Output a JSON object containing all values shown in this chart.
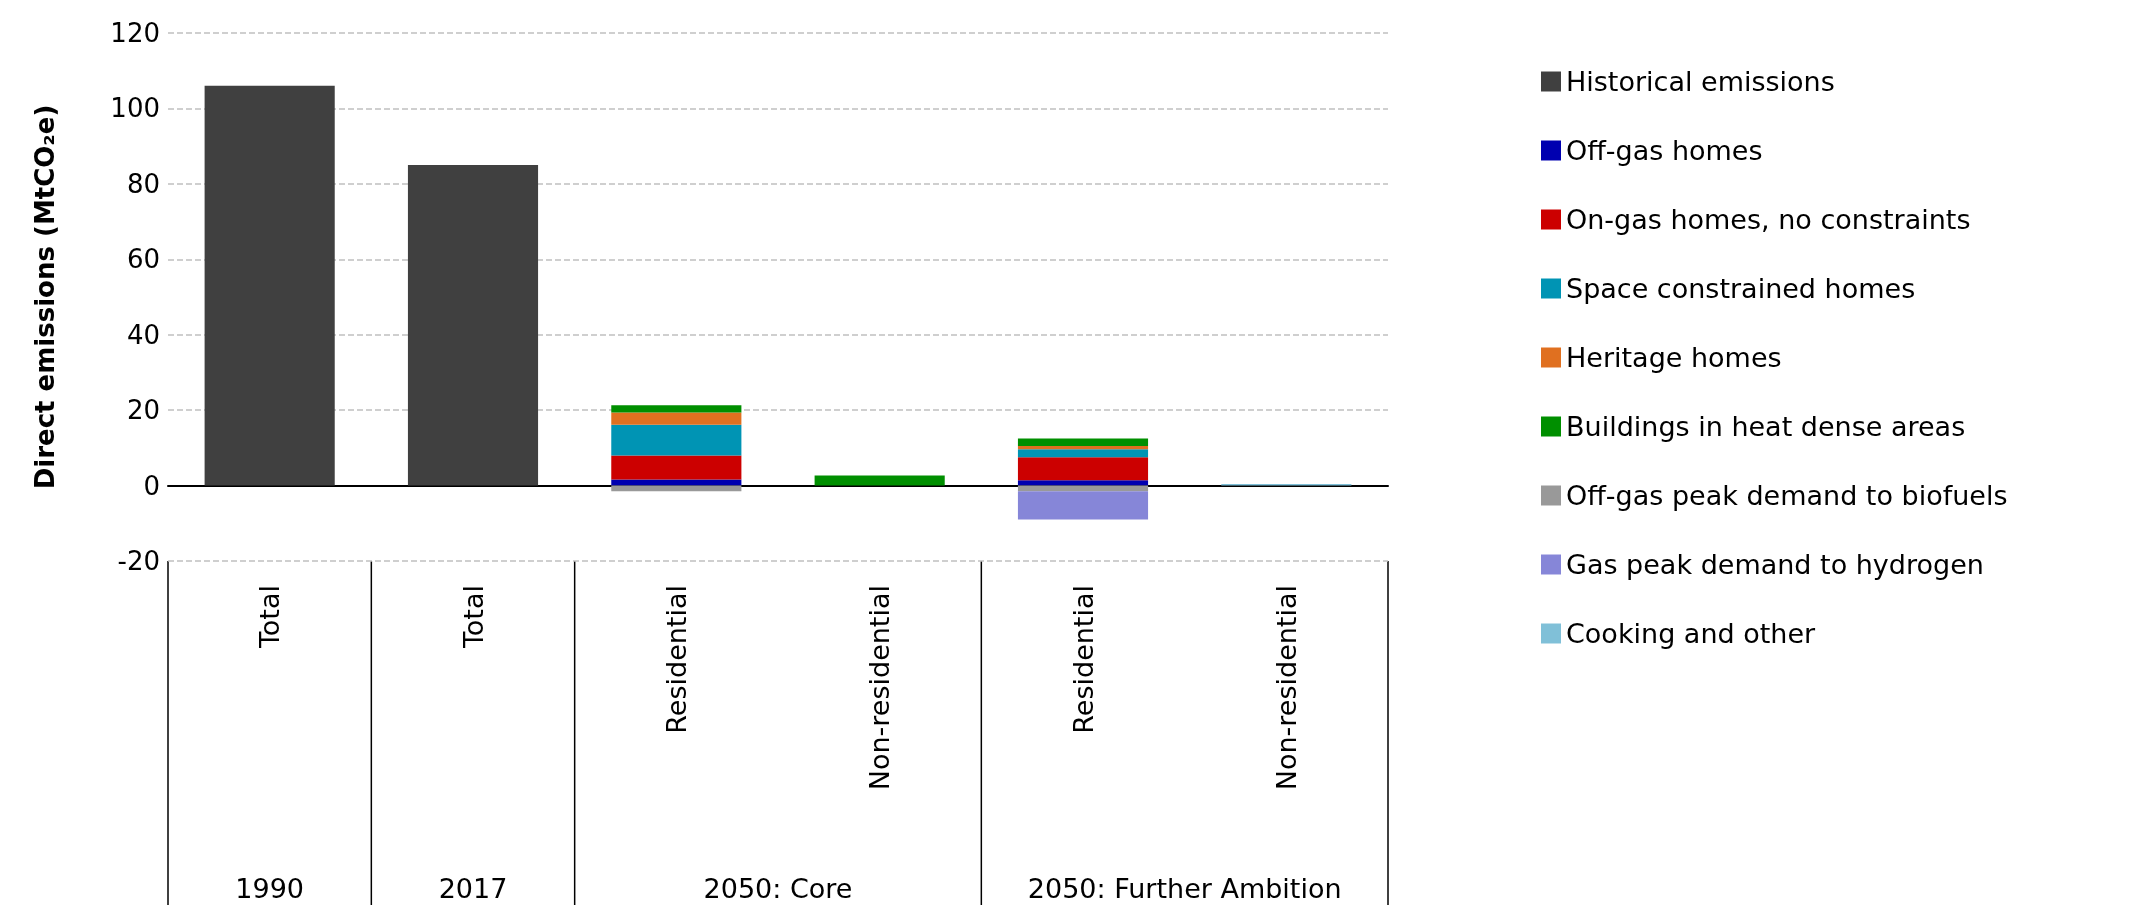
{
  "chart_data": {
    "type": "bar",
    "stacked": true,
    "ylabel": "Direct emissions (MtCO₂e)",
    "categories": [
      "Total",
      "Total",
      "Residential",
      "Non-residential",
      "Residential",
      "Non-residential"
    ],
    "annotations": [
      "1990",
      "2017",
      "2050: Core",
      "2050: Further Ambition"
    ],
    "ylim": [
      -20,
      120
    ],
    "yticks": [
      -20,
      0,
      20,
      40,
      60,
      80,
      100,
      120
    ],
    "grid": "y",
    "legend": "right",
    "series": [
      {
        "name": "Historical emissions",
        "color": "#404040",
        "values": [
          106,
          85,
          null,
          null,
          null,
          null
        ]
      },
      {
        "name": "Off-gas homes",
        "color": "#0000b0",
        "values": [
          null,
          null,
          1.6,
          null,
          1.4,
          null
        ]
      },
      {
        "name": "On-gas homes, no constraints",
        "color": "#cc0000",
        "values": [
          null,
          null,
          6.4,
          null,
          6.1,
          null
        ]
      },
      {
        "name": "Space constrained homes",
        "color": "#0094b4",
        "values": [
          null,
          null,
          8.1,
          null,
          2.1,
          null
        ]
      },
      {
        "name": "Heritage homes",
        "color": "#e07020",
        "values": [
          null,
          null,
          3.3,
          null,
          0.9,
          null
        ]
      },
      {
        "name": "Buildings in heat dense areas",
        "color": "#008f00",
        "values": [
          null,
          null,
          1.9,
          2.7,
          2.0,
          null
        ]
      },
      {
        "name": "Off-gas peak demand to biofuels",
        "color": "#999999",
        "values": [
          null,
          null,
          -1.5,
          null,
          -1.5,
          null
        ]
      },
      {
        "name": "Gas peak demand to hydrogen",
        "color": "#8686d8",
        "values": [
          null,
          null,
          null,
          null,
          -7.5,
          null
        ]
      },
      {
        "name": "Cooking and other",
        "color": "#80c0d8",
        "values": [
          null,
          null,
          null,
          null,
          null,
          0.4
        ]
      }
    ]
  }
}
